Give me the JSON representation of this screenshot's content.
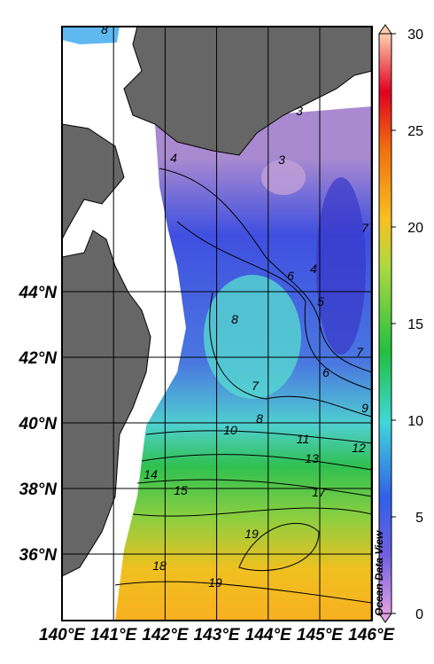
{
  "map": {
    "lon_ticks": [
      "140°E",
      "141°E",
      "142°E",
      "143°E",
      "144°E",
      "145°E",
      "146°E"
    ],
    "lat_ticks": [
      "36°N",
      "38°N",
      "40°N",
      "42°N",
      "44°N"
    ],
    "contour_labels": [
      "8",
      "3",
      "4",
      "3",
      "7",
      "6",
      "4",
      "5",
      "8",
      "7",
      "6",
      "7",
      "8",
      "9",
      "10",
      "11",
      "12",
      "13",
      "14",
      "15",
      "17",
      "19",
      "18",
      "19"
    ]
  },
  "colorbar": {
    "ticks": [
      0,
      5,
      10,
      15,
      20,
      25,
      30
    ],
    "watermark": "Ocean Data View"
  }
}
